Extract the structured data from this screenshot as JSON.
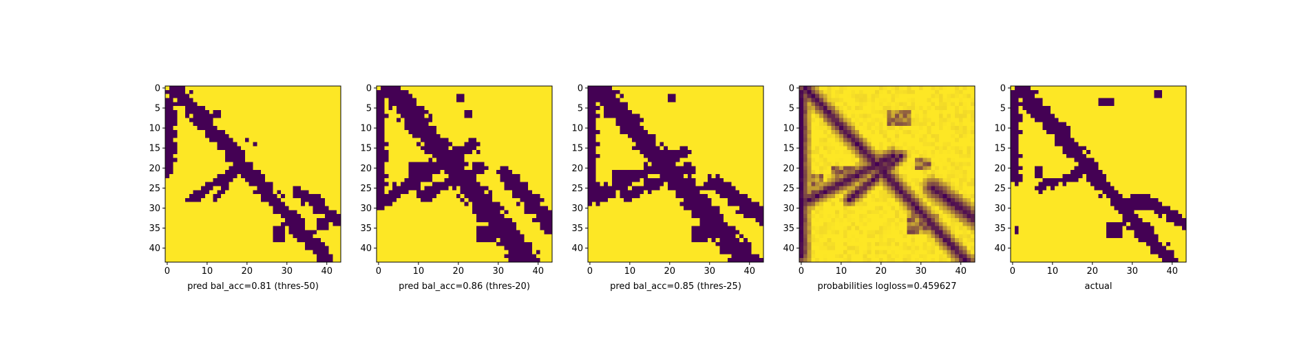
{
  "chart_data": [
    {
      "type": "heatmap",
      "xlabel": "pred bal_acc=0.81 (thres-50)",
      "size": 44,
      "xticks": [
        0,
        10,
        20,
        30,
        40
      ],
      "yticks": [
        0,
        5,
        10,
        15,
        20,
        25,
        30,
        35,
        40
      ],
      "colors": {
        "low": "#440154",
        "high": "#fde725"
      },
      "lines": [
        [
          0,
          4,
          0,
          20,
          1.6
        ],
        [
          2,
          0,
          40,
          43,
          1.5
        ],
        [
          33,
          26,
          44,
          34,
          1.2
        ],
        [
          16,
          21,
          6,
          28,
          0.8
        ],
        [
          19,
          18,
          12,
          28,
          0.6
        ]
      ],
      "blobs": [
        [
          12,
          6,
          2,
          2
        ],
        [
          36,
          27,
          3,
          2
        ],
        [
          27,
          35,
          3,
          4
        ],
        [
          38,
          33,
          3,
          3
        ],
        [
          22,
          14,
          1,
          1
        ],
        [
          20,
          13,
          1,
          1
        ]
      ]
    },
    {
      "type": "heatmap",
      "xlabel": "pred bal_acc=0.86 (thres-20)",
      "size": 44,
      "xticks": [
        0,
        10,
        20,
        30,
        40
      ],
      "yticks": [
        0,
        5,
        10,
        15,
        20,
        25,
        30,
        35,
        40
      ],
      "colors": {
        "low": "#440154",
        "high": "#fde725"
      },
      "lines": [
        [
          0,
          2,
          0,
          27,
          1.8
        ],
        [
          3,
          0,
          38,
          44,
          2.2
        ],
        [
          32,
          22,
          44,
          35,
          1.6
        ],
        [
          24,
          14,
          0,
          29,
          1.4
        ],
        [
          26,
          20,
          11,
          27,
          1.1
        ]
      ],
      "blobs": [
        [
          8,
          19,
          5,
          3
        ],
        [
          28,
          34,
          7,
          4
        ],
        [
          25,
          35,
          5,
          4
        ],
        [
          20,
          2,
          2,
          2
        ],
        [
          22,
          6,
          2,
          2
        ],
        [
          6,
          6,
          1,
          1
        ]
      ]
    },
    {
      "type": "heatmap",
      "xlabel": "pred bal_acc=0.85 (thres-25)",
      "size": 44,
      "xticks": [
        0,
        10,
        20,
        30,
        40
      ],
      "yticks": [
        0,
        5,
        10,
        15,
        20,
        25,
        30,
        35,
        40
      ],
      "colors": {
        "low": "#440154",
        "high": "#fde725"
      },
      "lines": [
        [
          0,
          2,
          0,
          25,
          1.7
        ],
        [
          2,
          0,
          40,
          44,
          2.1
        ],
        [
          31,
          24,
          44,
          33,
          1.5
        ],
        [
          24,
          16,
          0,
          28,
          1.2
        ],
        [
          25,
          20,
          9,
          27,
          1.0
        ]
      ],
      "blobs": [
        [
          6,
          21,
          4,
          3
        ],
        [
          28,
          34,
          6,
          4
        ],
        [
          26,
          35,
          4,
          4
        ],
        [
          20,
          2,
          2,
          2
        ],
        [
          30,
          30,
          3,
          2
        ]
      ]
    },
    {
      "type": "heatmap",
      "xlabel": "probabilities logloss=0.459627",
      "size": 44,
      "xticks": [
        0,
        10,
        20,
        30,
        40
      ],
      "yticks": [
        0,
        5,
        10,
        15,
        20,
        25,
        30,
        35,
        40
      ],
      "colors": {
        "low": "#440154",
        "high": "#fde725"
      },
      "lines": [
        [
          0,
          1,
          0,
          42,
          1.3
        ],
        [
          1,
          0,
          42,
          44,
          1.3
        ],
        [
          33,
          25,
          44,
          33,
          1.6
        ],
        [
          23,
          17,
          0,
          29,
          1.2
        ],
        [
          25,
          17,
          12,
          28,
          1.0
        ]
      ],
      "blobs": [
        [
          8,
          20,
          6,
          5
        ],
        [
          27,
          32,
          8,
          5
        ],
        [
          22,
          6,
          6,
          4
        ],
        [
          3,
          22,
          3,
          5
        ],
        [
          29,
          18,
          4,
          3
        ]
      ]
    },
    {
      "type": "heatmap",
      "xlabel": "actual",
      "size": 44,
      "xticks": [
        0,
        10,
        20,
        30,
        40
      ],
      "yticks": [
        0,
        5,
        10,
        15,
        20,
        25,
        30,
        35,
        40
      ],
      "colors": {
        "low": "#440154",
        "high": "#fde725"
      },
      "lines": [
        [
          0,
          2,
          0,
          22,
          1.5
        ],
        [
          2,
          0,
          40,
          44,
          1.6
        ],
        [
          33,
          28,
          44,
          34,
          1.1
        ],
        [
          21,
          20,
          6,
          25,
          0.8
        ]
      ],
      "blobs": [
        [
          30,
          27,
          5,
          4
        ],
        [
          24,
          34,
          4,
          4
        ],
        [
          6,
          20,
          2,
          3
        ],
        [
          36,
          1,
          2,
          2
        ],
        [
          22,
          3,
          4,
          2
        ],
        [
          1,
          35,
          1,
          2
        ]
      ]
    }
  ]
}
